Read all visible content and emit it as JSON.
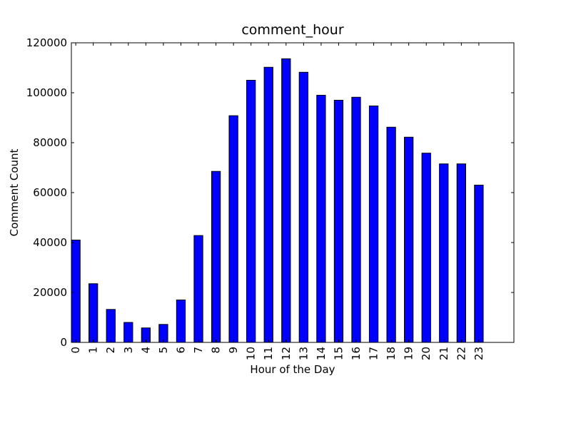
{
  "chart_data": {
    "type": "bar",
    "title": "comment_hour",
    "xlabel": "Hour of the Day",
    "ylabel": "Comment Count",
    "categories": [
      "0",
      "1",
      "2",
      "3",
      "4",
      "5",
      "6",
      "7",
      "8",
      "9",
      "10",
      "11",
      "12",
      "13",
      "14",
      "15",
      "16",
      "17",
      "18",
      "19",
      "20",
      "21",
      "22",
      "23"
    ],
    "values": [
      41000,
      23500,
      13200,
      8000,
      5800,
      7200,
      17000,
      42800,
      68500,
      90800,
      105000,
      110200,
      113600,
      108200,
      99000,
      97000,
      98200,
      94700,
      86200,
      82200,
      75800,
      71500,
      71500,
      63000
    ],
    "ylim": [
      0,
      120000
    ],
    "yticks": [
      0,
      20000,
      40000,
      60000,
      80000,
      100000,
      120000
    ],
    "ytick_labels": [
      "0",
      "20000",
      "40000",
      "60000",
      "80000",
      "100000",
      "120000"
    ],
    "bar_color": "#0000ff",
    "edge_color": "#000000",
    "grid": false,
    "legend": "none"
  }
}
